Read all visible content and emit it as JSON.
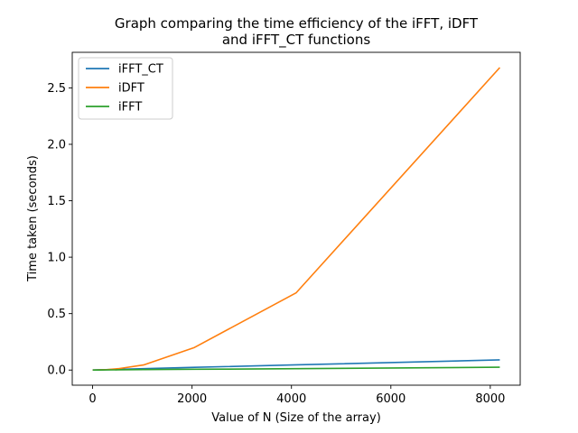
{
  "chart_data": {
    "type": "line",
    "title_lines": [
      "Graph comparing the time efficiency of the iFFT, iDFT",
      "and iFFT_CT functions"
    ],
    "xlabel": "Value of N (Size of the array)",
    "ylabel": "Time taken (seconds)",
    "xlim": [
      -410,
      8602
    ],
    "ylim": [
      -0.134,
      2.815
    ],
    "xticks": [
      0,
      2000,
      4000,
      6000,
      8000
    ],
    "xtick_labels": [
      "0",
      "2000",
      "4000",
      "6000",
      "8000"
    ],
    "yticks": [
      0.0,
      0.5,
      1.0,
      1.5,
      2.0,
      2.5
    ],
    "ytick_labels": [
      "0.0",
      "0.5",
      "1.0",
      "1.5",
      "2.0",
      "2.5"
    ],
    "grid": false,
    "legend_position": "upper-left",
    "series": [
      {
        "name": "iFFT_CT",
        "color": "#1f77b4",
        "x": [
          2,
          4,
          8,
          16,
          32,
          64,
          128,
          256,
          512,
          1024,
          2048,
          4096,
          8192
        ],
        "y": [
          0.0,
          0.0,
          0.0,
          0.0,
          0.0005,
          0.001,
          0.002,
          0.003,
          0.006,
          0.012,
          0.024,
          0.046,
          0.09
        ]
      },
      {
        "name": "iDFT",
        "color": "#ff7f0e",
        "x": [
          2,
          4,
          8,
          16,
          32,
          64,
          128,
          256,
          512,
          1024,
          2048,
          4096,
          8192
        ],
        "y": [
          0.0,
          0.0,
          0.0,
          0.0,
          0.0,
          0.0003,
          0.001,
          0.003,
          0.012,
          0.045,
          0.2,
          0.685,
          2.68
        ]
      },
      {
        "name": "iFFT",
        "color": "#2ca02c",
        "x": [
          2,
          4,
          8,
          16,
          32,
          64,
          128,
          256,
          512,
          1024,
          2048,
          4096,
          8192
        ],
        "y": [
          0.0,
          0.0,
          0.0,
          0.0,
          0.0,
          0.0002,
          0.0005,
          0.001,
          0.002,
          0.004,
          0.007,
          0.012,
          0.025
        ]
      }
    ]
  }
}
